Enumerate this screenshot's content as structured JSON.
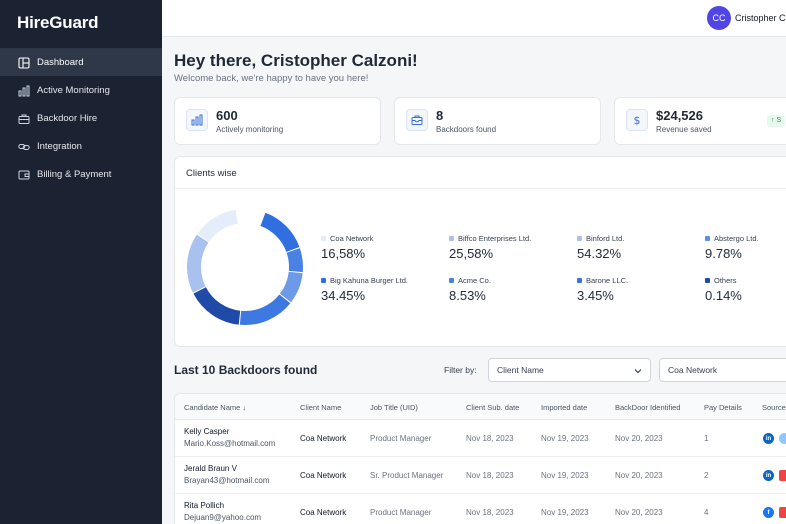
{
  "brand": "HireGuard",
  "sidebar": {
    "items": [
      {
        "label": "Dashboard",
        "icon": "dashboard-icon",
        "active": true
      },
      {
        "label": "Active Monitoring",
        "icon": "bar-chart-icon"
      },
      {
        "label": "Backdoor Hire",
        "icon": "briefcase-icon"
      },
      {
        "label": "Integration",
        "icon": "link-icon"
      },
      {
        "label": "Billing & Payment",
        "icon": "wallet-icon"
      }
    ]
  },
  "user": {
    "initials": "CC",
    "name": "Cristopher Calzoni"
  },
  "greeting": {
    "title": "Hey there, Cristopher Calzoni!",
    "subtitle": "Welcome back, we're happy to have you here!"
  },
  "stats": [
    {
      "value": "600",
      "label": "Actively monitoring",
      "icon": "bar-chart-icon"
    },
    {
      "value": "8",
      "label": "Backdoors found",
      "icon": "inbox-icon"
    },
    {
      "value": "$24,526",
      "label": "Revenue saved",
      "icon": "dollar-icon",
      "badge": "↑ S"
    }
  ],
  "clients": {
    "title": "Clients wise",
    "entries": [
      {
        "name": "Coa Network",
        "value": "16,58%",
        "color": "#e6edfa"
      },
      {
        "name": "Biffco Enterprises Ltd.",
        "value": "25,58%",
        "color": "#a9c1ef"
      },
      {
        "name": "Binford Ltd.",
        "value": "54.32%",
        "color": "#a9c1ef"
      },
      {
        "name": "Abstergo Ltd.",
        "value": "9.78%",
        "color": "#5b8ee6"
      },
      {
        "name": "Big Kahuna Burger Ltd.",
        "value": "34.45%",
        "color": "#2f6fe0"
      },
      {
        "name": "Acme Co.",
        "value": "8.53%",
        "color": "#4a82e3"
      },
      {
        "name": "Barone LLC.",
        "value": "3.45%",
        "color": "#3a73dc"
      },
      {
        "name": "Others",
        "value": "0.14%",
        "color": "#1f4aa8"
      }
    ],
    "donut_segments": [
      {
        "fraction": 0.14,
        "color": "#2f6fe0"
      },
      {
        "fraction": 0.07,
        "color": "#4a82e3"
      },
      {
        "fraction": 0.09,
        "color": "#6d9ae8"
      },
      {
        "fraction": 0.16,
        "color": "#3d79e0"
      },
      {
        "fraction": 0.16,
        "color": "#1f4aa8"
      },
      {
        "fraction": 0.17,
        "color": "#a9c1ef"
      },
      {
        "fraction": 0.13,
        "color": "#e6edfa"
      }
    ]
  },
  "backdoors": {
    "title": "Last 10 Backdoors found",
    "filter_label": "Filter by:",
    "filter_select": "Client Name",
    "filter_value": "Coa Network",
    "columns": [
      "Candidate Name ↓",
      "Client Name",
      "Job Title (UID)",
      "Client Sub. date",
      "Imported date",
      "BackDoor Identified",
      "Pay Details",
      "Source"
    ],
    "rows": [
      {
        "name": "Kelly Casper",
        "email": "Mario.Koss@hotmail.com",
        "client": "Coa Network",
        "job": "Product Manager",
        "sub": "Nov 18, 2023",
        "imported": "Nov 19, 2023",
        "identified": "Nov 20, 2023",
        "pay": "1",
        "sources": [
          "linkedin",
          "other"
        ]
      },
      {
        "name": "Jerald Braun V",
        "email": "Brayan43@hotmail.com",
        "client": "Coa Network",
        "job": "Sr. Product Manager",
        "sub": "Nov 18, 2023",
        "imported": "Nov 19, 2023",
        "identified": "Nov 20, 2023",
        "pay": "2",
        "sources": [
          "linkedin",
          "briefcase"
        ]
      },
      {
        "name": "Rita Pollich",
        "email": "Dejuan9@yahoo.com",
        "client": "Coa Network",
        "job": "Product Manager",
        "sub": "Nov 18, 2023",
        "imported": "Nov 19, 2023",
        "identified": "Nov 20, 2023",
        "pay": "4",
        "sources": [
          "facebook",
          "briefcase"
        ]
      }
    ]
  }
}
